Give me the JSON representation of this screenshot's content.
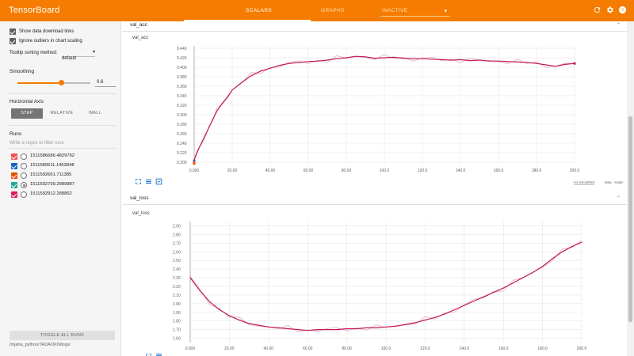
{
  "topbar": {
    "brand": "TensorBoard",
    "tabs": [
      {
        "label": "SCALARS",
        "active": true
      },
      {
        "label": "GRAPHS",
        "active": false
      }
    ],
    "inactive_dropdown": "INACTIVE",
    "icons": [
      "refresh-icon",
      "settings-icon",
      "help-icon"
    ]
  },
  "sidebar": {
    "show_download_links": "Show data download links",
    "ignore_outliers": "Ignore outliers in chart scaling",
    "tooltip_sorting_label": "Tooltip sorting method:",
    "tooltip_sorting_value": "default",
    "smoothing_label": "Smoothing",
    "smoothing_value": "0.6",
    "horizontal_axis_label": "Horizontal Axis",
    "axis_options": [
      "STEP",
      "RELATIVE",
      "WALL"
    ],
    "runs_label": "Runs",
    "filter_placeholder": "Write a regex to filter runs",
    "runs": [
      {
        "name": "1511586686.4829792",
        "color": "#ef5350",
        "radio": false
      },
      {
        "name": "1511589511.1453848",
        "color": "#1565c0",
        "radio": false
      },
      {
        "name": "1511592661.711385",
        "color": "#e65100",
        "radio": false
      },
      {
        "name": "1511592799.2889887",
        "color": "#26a69a",
        "radio": true
      },
      {
        "name": "1511592912.288862",
        "color": "#d81b60",
        "radio": false
      }
    ],
    "toggle_all": "TOGGLE ALL RUNS",
    "logdir": "/mjaha_python/TADAOKN/logs/"
  },
  "colors": {
    "accent": "#f57c00",
    "line": "#c2185b",
    "smoothed_raw": "#e8b8cf"
  },
  "charts": {
    "acc": {
      "category": "val_acc",
      "title": "val_acc",
      "smoothing_note": "no smoothed",
      "smoothing_step": "step · scale"
    },
    "loss": {
      "category": "val_loss",
      "title": "val_loss"
    }
  },
  "chart_data": [
    {
      "type": "line",
      "title": "val_acc",
      "xlabel": "",
      "ylabel": "",
      "xlim": [
        0,
        200
      ],
      "ylim": [
        0.195,
        0.445
      ],
      "x_ticks": [
        "0.000",
        "20.00",
        "40.00",
        "60.00",
        "80.00",
        "100.0",
        "120.0",
        "140.0",
        "160.0",
        "180.0",
        "200.0"
      ],
      "y_ticks": [
        "0.200",
        "0.220",
        "0.240",
        "0.260",
        "0.280",
        "0.300",
        "0.320",
        "0.340",
        "0.360",
        "0.380",
        "0.400",
        "0.420",
        "0.440"
      ],
      "grid": true,
      "series": [
        {
          "x": [
            0,
            2,
            5,
            8,
            10,
            12,
            15,
            18,
            20,
            25,
            30,
            35,
            40,
            45,
            50,
            55,
            60,
            65,
            70,
            75,
            80,
            85,
            90,
            95,
            100,
            105,
            110,
            115,
            120,
            125,
            130,
            135,
            140,
            145,
            150,
            155,
            160,
            165,
            170,
            175,
            180,
            185,
            190,
            195,
            200
          ],
          "y": [
            0.205,
            0.225,
            0.25,
            0.275,
            0.292,
            0.308,
            0.325,
            0.34,
            0.352,
            0.368,
            0.382,
            0.392,
            0.398,
            0.404,
            0.408,
            0.41,
            0.412,
            0.413,
            0.415,
            0.418,
            0.42,
            0.423,
            0.422,
            0.419,
            0.42,
            0.421,
            0.419,
            0.418,
            0.418,
            0.417,
            0.416,
            0.415,
            0.416,
            0.414,
            0.415,
            0.413,
            0.413,
            0.412,
            0.411,
            0.41,
            0.408,
            0.405,
            0.402,
            0.406,
            0.408
          ]
        }
      ]
    },
    {
      "type": "line",
      "title": "val_loss",
      "xlabel": "",
      "ylabel": "",
      "xlim": [
        0,
        200
      ],
      "ylim": [
        1.55,
        2.95
      ],
      "x_ticks": [
        "0.000",
        "20.00",
        "40.00",
        "60.00",
        "80.00",
        "100.0",
        "120.0",
        "140.0",
        "160.0",
        "180.0",
        "200.0"
      ],
      "y_ticks": [
        "1.60",
        "1.70",
        "1.80",
        "1.90",
        "2.00",
        "2.10",
        "2.20",
        "2.30",
        "2.40",
        "2.50",
        "2.60",
        "2.70",
        "2.80",
        "2.90"
      ],
      "grid": true,
      "series": [
        {
          "x": [
            0,
            5,
            10,
            15,
            20,
            25,
            30,
            35,
            40,
            45,
            50,
            55,
            60,
            65,
            70,
            75,
            80,
            85,
            90,
            95,
            100,
            105,
            110,
            115,
            120,
            125,
            130,
            135,
            140,
            145,
            150,
            155,
            160,
            165,
            170,
            175,
            180,
            185,
            190,
            195,
            200
          ],
          "y": [
            2.3,
            2.15,
            2.02,
            1.93,
            1.86,
            1.81,
            1.77,
            1.75,
            1.73,
            1.72,
            1.71,
            1.7,
            1.69,
            1.7,
            1.7,
            1.7,
            1.71,
            1.71,
            1.72,
            1.72,
            1.73,
            1.74,
            1.76,
            1.78,
            1.81,
            1.84,
            1.88,
            1.93,
            1.98,
            2.03,
            2.08,
            2.13,
            2.18,
            2.24,
            2.3,
            2.36,
            2.43,
            2.52,
            2.6,
            2.66,
            2.71
          ]
        }
      ]
    }
  ]
}
